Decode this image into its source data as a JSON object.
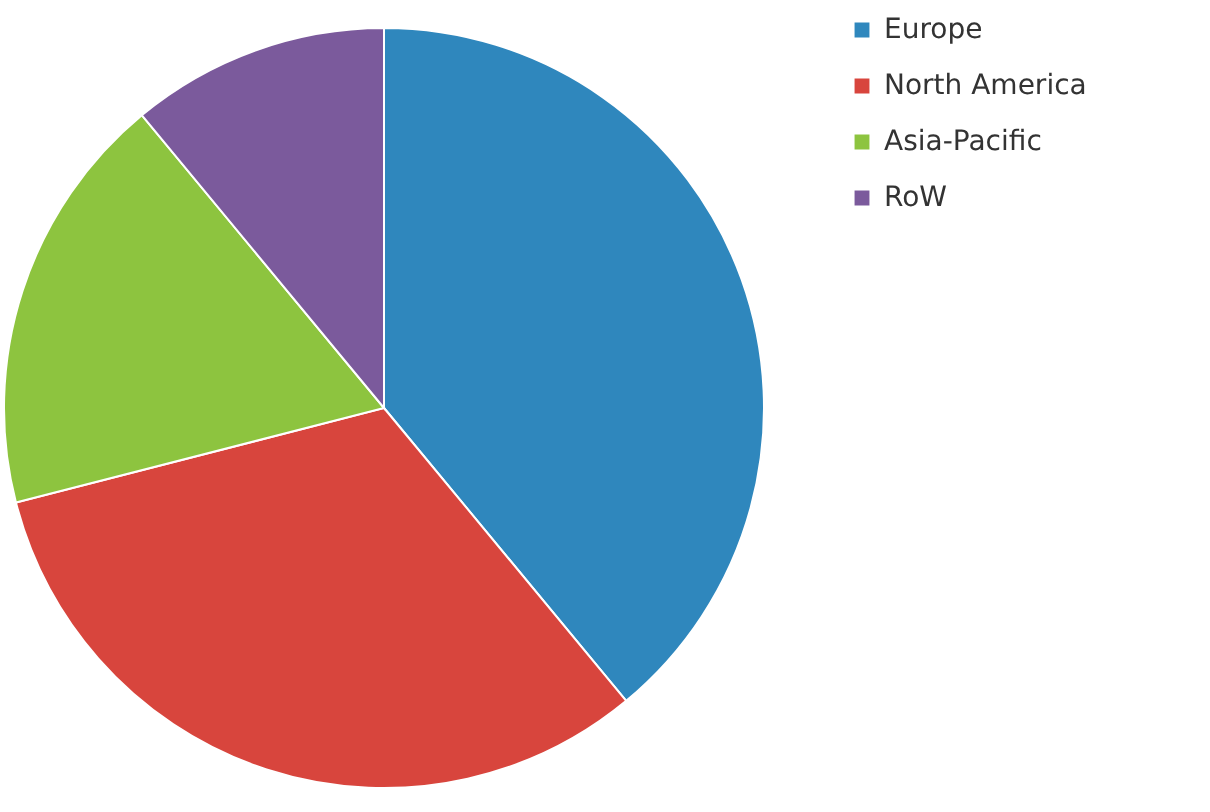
{
  "chart_data": {
    "type": "pie",
    "categories": [
      "Europe",
      "North America",
      "Asia-Pacific",
      "RoW"
    ],
    "values": [
      39,
      32,
      18,
      11
    ],
    "colors": [
      "#2f87bd",
      "#d8453d",
      "#8dc43f",
      "#7b5a9c"
    ],
    "legend": "right"
  }
}
